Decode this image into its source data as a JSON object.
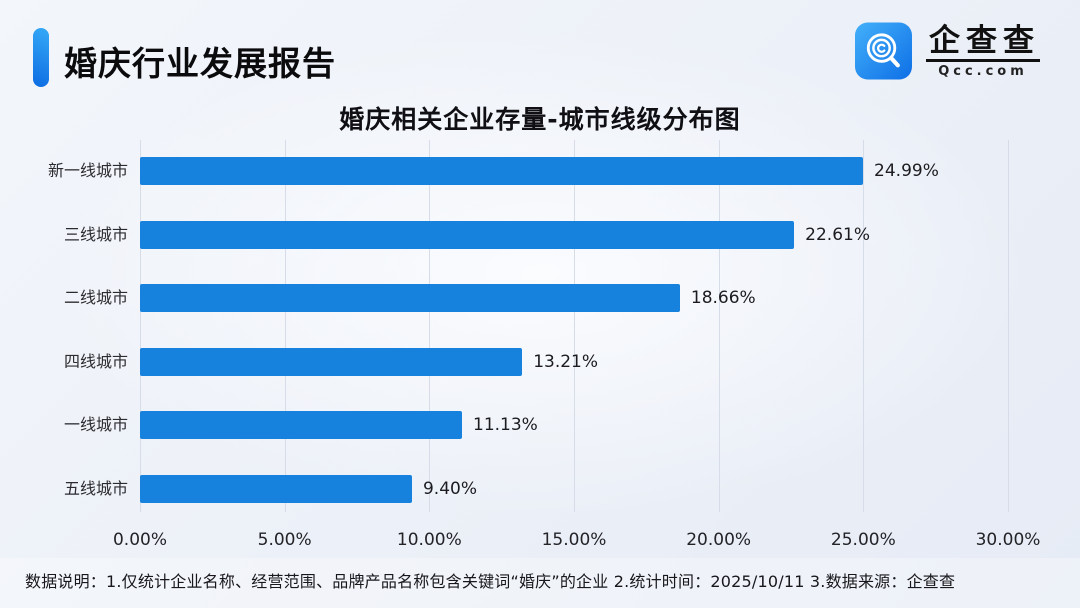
{
  "header": {
    "title": "婚庆行业发展报告",
    "accent_color": "#1a86ee"
  },
  "logo": {
    "name": "企查查",
    "domain": "Qcc.com",
    "icon": "qcc-magnifier-icon",
    "icon_color": "#1d8bf2"
  },
  "chart_data": {
    "type": "bar",
    "orientation": "horizontal",
    "title": "婚庆相关企业存量-城市线级分布图",
    "categories": [
      "新一线城市",
      "三线城市",
      "二线城市",
      "四线城市",
      "一线城市",
      "五线城市"
    ],
    "values": [
      24.99,
      22.61,
      18.66,
      13.21,
      11.13,
      9.4
    ],
    "value_labels": [
      "24.99%",
      "22.61%",
      "18.66%",
      "13.21%",
      "11.13%",
      "9.40%"
    ],
    "x_ticks": [
      "0.00%",
      "5.00%",
      "10.00%",
      "15.00%",
      "20.00%",
      "25.00%",
      "30.00%"
    ],
    "xlim": [
      0,
      30
    ],
    "xlabel": "",
    "ylabel": "",
    "grid": true,
    "legend": false,
    "bar_color": "#1682de",
    "gridline_color": "#d7dde8"
  },
  "footer": {
    "text": "数据说明：1.仅统计企业名称、经营范围、品牌产品名称包含关键词“婚庆”的企业  2.统计时间：2025/10/11   3.数据来源：企查查"
  }
}
